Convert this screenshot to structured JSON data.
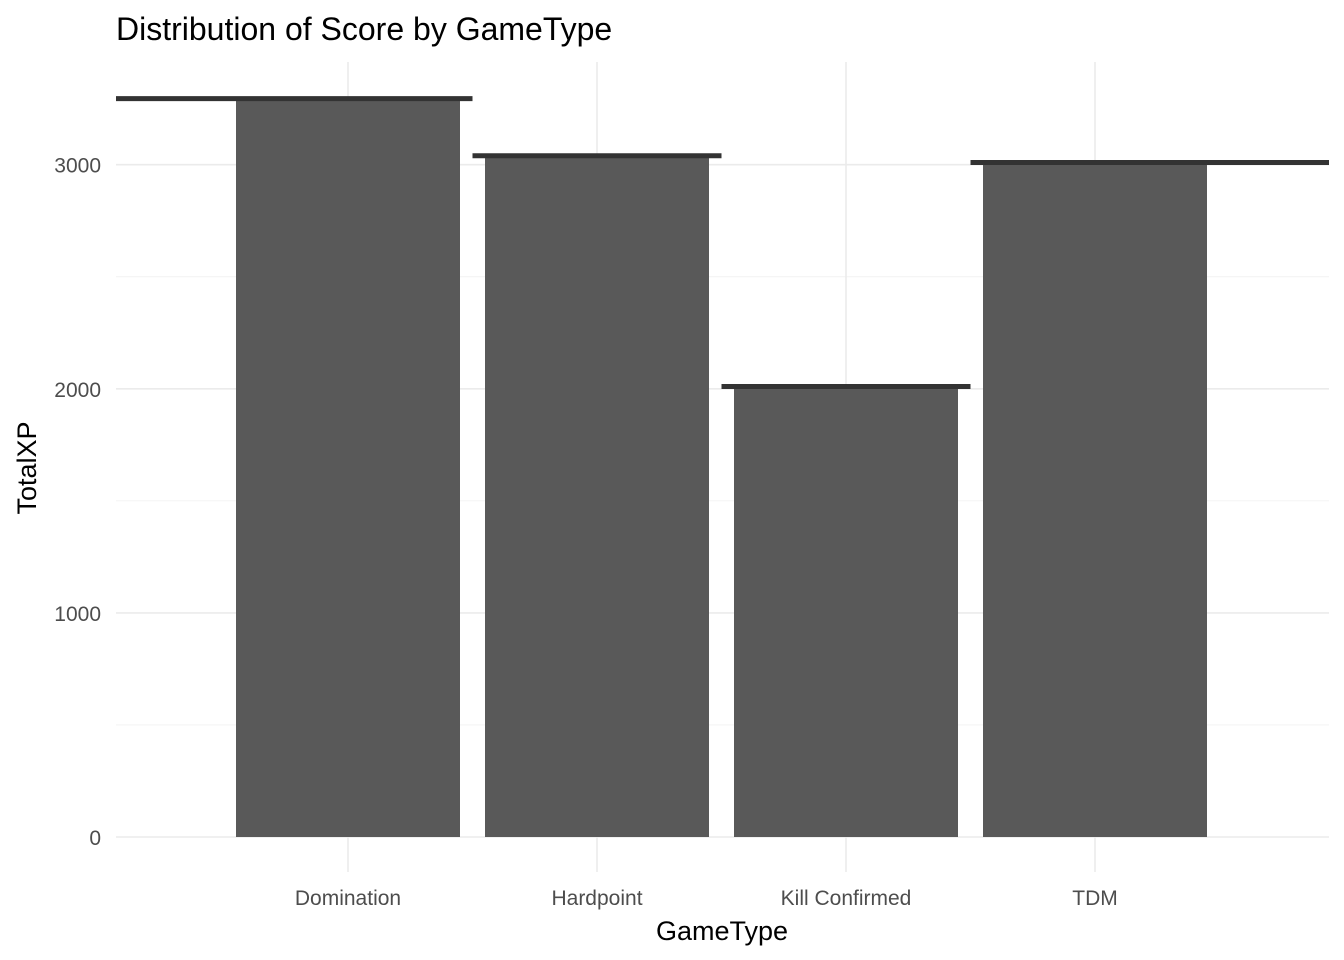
{
  "chart_data": {
    "type": "bar",
    "title": "Distribution of Score by GameType",
    "xlabel": "GameType",
    "ylabel": "TotalXP",
    "categories": [
      "Domination",
      "Hardpoint",
      "Kill Confirmed",
      "TDM"
    ],
    "values": [
      3290,
      3030,
      2000,
      3000
    ],
    "step_line_values": [
      3295,
      3040,
      2010,
      3010
    ],
    "ylim": [
      0,
      3460
    ],
    "y_ticks": [
      0,
      1000,
      2000,
      3000
    ],
    "grid": true,
    "legend": "none",
    "colors": {
      "bar": "#595959",
      "step_line": "#333333"
    }
  }
}
